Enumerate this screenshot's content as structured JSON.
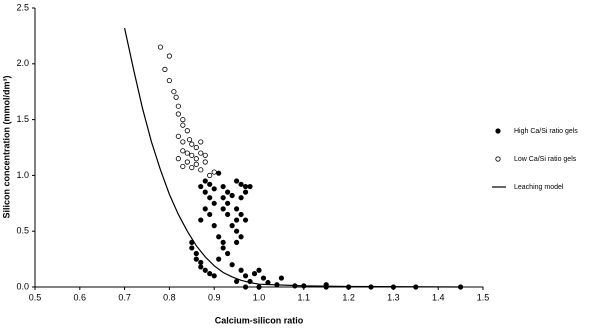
{
  "chart_data": {
    "type": "scatter",
    "xlabel": "Calcium-silicon ratio",
    "ylabel": "Silicon concentration (mmol/dm³)",
    "xlim": [
      0.5,
      1.5
    ],
    "ylim": [
      0,
      2.5
    ],
    "xticks": [
      0.5,
      0.6,
      0.7,
      0.8,
      0.9,
      {
        "value": 1.0,
        "label": "1.0"
      },
      1.1,
      1.2,
      1.3,
      1.4,
      1.5
    ],
    "yticks": [
      {
        "value": 0,
        "label": "0.0"
      },
      0.5,
      {
        "value": 1,
        "label": "1.0"
      },
      1.5,
      {
        "value": 2,
        "label": "2.0"
      },
      2.5
    ],
    "legend": "right",
    "series": [
      {
        "name": "High Ca/Si ratio gels",
        "marker": "filled",
        "color": "#000000",
        "x": [
          0.85,
          0.85,
          0.86,
          0.86,
          0.87,
          0.87,
          0.88,
          0.89,
          0.9,
          0.87,
          0.88,
          0.89,
          0.9,
          0.88,
          0.89,
          0.9,
          0.88,
          0.89,
          0.87,
          0.9,
          0.91,
          0.92,
          0.93,
          0.92,
          0.94,
          0.93,
          0.92,
          0.93,
          0.91,
          0.92,
          0.92,
          0.93,
          0.91,
          0.94,
          0.95,
          0.95,
          0.96,
          0.95,
          0.96,
          0.97,
          0.95,
          0.96,
          0.97,
          0.98,
          0.96,
          0.97,
          0.95,
          0.94,
          0.96,
          0.97,
          0.98,
          0.99,
          1.0,
          1.01,
          1.02,
          1.04,
          1.05,
          1.08,
          1.1,
          1.15,
          1.15,
          1.2,
          1.25,
          1.3,
          1.35,
          1.45,
          0.95,
          0.97,
          1.0
        ],
        "values": [
          0.4,
          0.35,
          0.3,
          0.25,
          0.22,
          0.18,
          0.15,
          0.12,
          0.1,
          0.9,
          0.95,
          0.92,
          0.88,
          0.85,
          0.8,
          0.75,
          0.7,
          0.65,
          0.6,
          0.55,
          1.02,
          0.9,
          0.85,
          0.8,
          0.82,
          0.75,
          0.7,
          0.65,
          0.45,
          0.4,
          0.35,
          0.3,
          0.25,
          0.55,
          0.6,
          0.5,
          0.45,
          0.7,
          0.8,
          0.9,
          0.95,
          0.92,
          0.85,
          0.9,
          0.65,
          0.6,
          0.4,
          0.2,
          0.15,
          0.1,
          0.05,
          0.12,
          0.15,
          0.08,
          0.04,
          0.02,
          0.08,
          0.01,
          0.01,
          0.02,
          0,
          0,
          0,
          0,
          0,
          0,
          0.05,
          0,
          0
        ]
      },
      {
        "name": "Low Ca/Si ratio gels",
        "marker": "open",
        "color": "#000000",
        "x": [
          0.78,
          0.8,
          0.79,
          0.8,
          0.81,
          0.815,
          0.82,
          0.82,
          0.83,
          0.83,
          0.84,
          0.82,
          0.83,
          0.845,
          0.85,
          0.86,
          0.83,
          0.84,
          0.85,
          0.87,
          0.88,
          0.82,
          0.84,
          0.86,
          0.83,
          0.85,
          0.87,
          0.89,
          0.9,
          0.86,
          0.88,
          0.87
        ],
        "values": [
          2.15,
          2.07,
          1.95,
          1.85,
          1.75,
          1.7,
          1.62,
          1.55,
          1.5,
          1.45,
          1.4,
          1.35,
          1.3,
          1.32,
          1.28,
          1.25,
          1.22,
          1.2,
          1.18,
          1.2,
          1.18,
          1.15,
          1.12,
          1.1,
          1.08,
          1.07,
          1.05,
          1.0,
          1.03,
          1.15,
          1.12,
          1.3
        ]
      },
      {
        "name": "Leaching model",
        "marker": "line",
        "color": "#000000",
        "x": [
          0.7,
          0.72,
          0.74,
          0.76,
          0.78,
          0.8,
          0.82,
          0.84,
          0.86,
          0.88,
          0.9,
          0.92,
          0.94,
          0.96,
          0.98,
          1.0,
          1.1,
          1.2,
          1.45
        ],
        "values": [
          2.32,
          1.95,
          1.6,
          1.3,
          1.05,
          0.83,
          0.65,
          0.5,
          0.37,
          0.27,
          0.19,
          0.13,
          0.09,
          0.06,
          0.04,
          0.025,
          0.01,
          0.005,
          0
        ]
      }
    ]
  }
}
